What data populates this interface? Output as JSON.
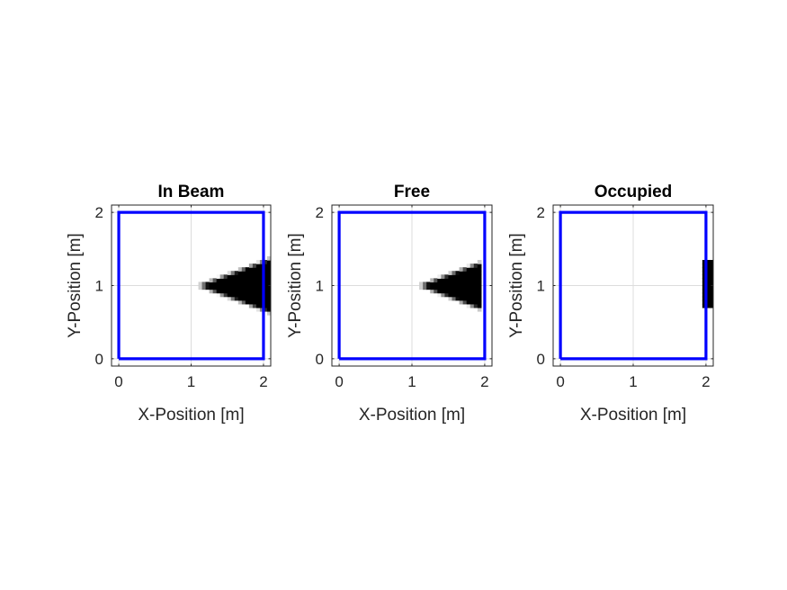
{
  "chart_data": [
    {
      "type": "heatmap",
      "title": "In Beam",
      "xlabel": "X-Position [m]",
      "ylabel": "Y-Position [m]",
      "xlim": [
        -0.1,
        2.1
      ],
      "ylim": [
        -0.1,
        2.1
      ],
      "xticks": [
        "0",
        "1",
        "2"
      ],
      "yticks": [
        "0",
        "1",
        "2"
      ],
      "grid": true,
      "cell_size": 0.05,
      "filled_region": {
        "shape": "triangle",
        "apex": [
          1.1,
          1.0
        ],
        "base_x": 2.1,
        "base_y_range": [
          0.63,
          1.37
        ]
      },
      "boundary": {
        "color": "#0000ff",
        "x": [
          0,
          2,
          2,
          0,
          0
        ],
        "y": [
          0,
          0,
          2,
          2,
          0
        ]
      }
    },
    {
      "type": "heatmap",
      "title": "Free",
      "xlabel": "X-Position [m]",
      "ylabel": "Y-Position [m]",
      "xlim": [
        -0.1,
        2.1
      ],
      "ylim": [
        -0.1,
        2.1
      ],
      "xticks": [
        "0",
        "1",
        "2"
      ],
      "yticks": [
        "0",
        "1",
        "2"
      ],
      "grid": true,
      "cell_size": 0.05,
      "filled_region": {
        "shape": "triangle",
        "apex": [
          1.1,
          1.0
        ],
        "base_x": 1.95,
        "base_y_range": [
          0.68,
          1.32
        ]
      },
      "boundary": {
        "color": "#0000ff",
        "x": [
          0,
          2,
          2,
          0,
          0
        ],
        "y": [
          0,
          0,
          2,
          2,
          0
        ]
      }
    },
    {
      "type": "heatmap",
      "title": "Occupied",
      "xlabel": "X-Position [m]",
      "ylabel": "Y-Position [m]",
      "xlim": [
        -0.1,
        2.1
      ],
      "ylim": [
        -0.1,
        2.1
      ],
      "xticks": [
        "0",
        "1",
        "2"
      ],
      "yticks": [
        "0",
        "1",
        "2"
      ],
      "grid": true,
      "cell_size": 0.05,
      "filled_region": {
        "shape": "band",
        "x_range": [
          1.95,
          2.1
        ],
        "y_range": [
          0.68,
          1.37
        ]
      },
      "boundary": {
        "color": "#0000ff",
        "x": [
          0,
          2,
          2,
          0,
          0
        ],
        "y": [
          0,
          0,
          2,
          2,
          0
        ]
      }
    }
  ]
}
